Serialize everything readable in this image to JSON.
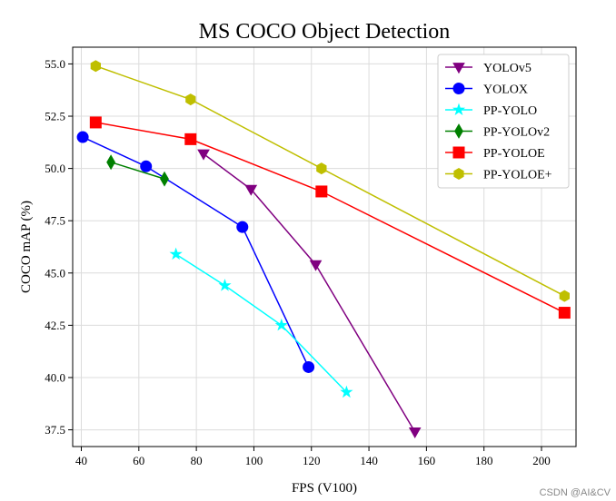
{
  "watermark": "CSDN @AI&CV",
  "chart_data": {
    "type": "line",
    "title": "MS COCO Object Detection",
    "xlabel": "FPS (V100)",
    "ylabel": "COCO mAP (%)",
    "xlim": [
      37,
      212
    ],
    "ylim": [
      36.7,
      55.8
    ],
    "x_ticks": [
      40,
      60,
      80,
      100,
      120,
      140,
      160,
      180,
      200
    ],
    "y_ticks": [
      37.5,
      40.0,
      42.5,
      45.0,
      47.5,
      50.0,
      52.5,
      55.0
    ],
    "x_tick_labels": [
      "40",
      "60",
      "80",
      "100",
      "120",
      "140",
      "160",
      "180",
      "200"
    ],
    "y_tick_labels": [
      "37.5",
      "40.0",
      "42.5",
      "45.0",
      "47.5",
      "50.0",
      "52.5",
      "55.0"
    ],
    "grid": true,
    "legend_position": "top-right",
    "series": [
      {
        "name": "YOLOv5",
        "color": "#800080",
        "marker": "triangle-down",
        "x": [
          82.5,
          99,
          121.5,
          156
        ],
        "y": [
          50.7,
          49.0,
          45.4,
          37.4
        ]
      },
      {
        "name": "YOLOX",
        "color": "#0000ff",
        "marker": "circle",
        "x": [
          40.5,
          62.5,
          96,
          119
        ],
        "y": [
          51.5,
          50.1,
          47.2,
          40.5
        ]
      },
      {
        "name": "PP-YOLO",
        "color": "#00ffff",
        "marker": "star",
        "x": [
          72.9,
          89.9,
          109.6,
          132.2
        ],
        "y": [
          45.9,
          44.4,
          42.5,
          39.3
        ]
      },
      {
        "name": "PP-YOLOv2",
        "color": "#008000",
        "marker": "diamond",
        "x": [
          50.3,
          68.9
        ],
        "y": [
          50.3,
          49.5
        ]
      },
      {
        "name": "PP-YOLOE",
        "color": "#ff0000",
        "marker": "square",
        "x": [
          45,
          78,
          123.5,
          208
        ],
        "y": [
          52.2,
          51.4,
          48.9,
          43.1
        ]
      },
      {
        "name": "PP-YOLOE+",
        "color": "#bfbf00",
        "marker": "hexagon",
        "x": [
          45,
          78,
          123.5,
          208
        ],
        "y": [
          54.9,
          53.3,
          50.0,
          43.9
        ]
      }
    ]
  }
}
